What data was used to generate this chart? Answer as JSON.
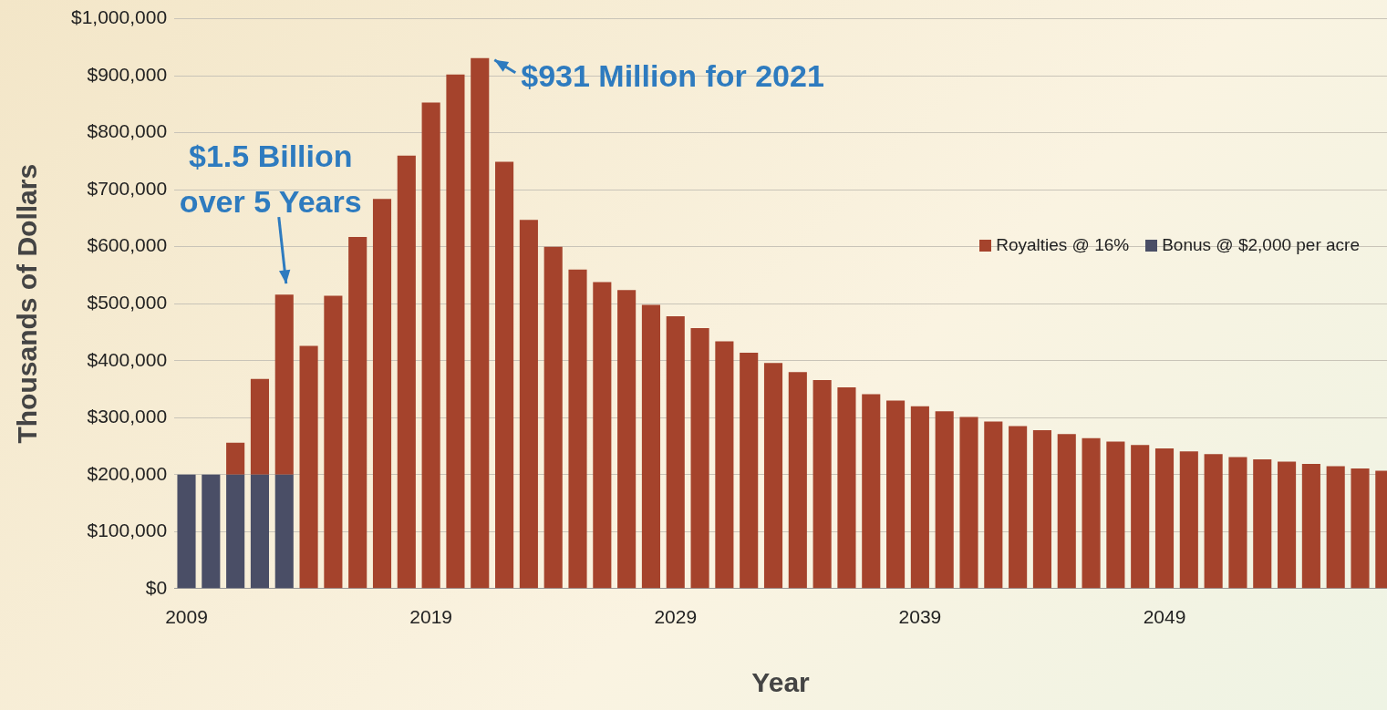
{
  "chart_data": {
    "type": "bar",
    "stacked": true,
    "xlabel": "Year",
    "ylabel": "Thousands of Dollars",
    "x": [
      2009,
      2010,
      2011,
      2012,
      2013,
      2014,
      2015,
      2016,
      2017,
      2018,
      2019,
      2020,
      2021,
      2022,
      2023,
      2024,
      2025,
      2026,
      2027,
      2028,
      2029,
      2030,
      2031,
      2032,
      2033,
      2034,
      2035,
      2036,
      2037,
      2038,
      2039,
      2040,
      2041,
      2042,
      2043,
      2044,
      2045,
      2046,
      2047,
      2048,
      2049,
      2050,
      2051,
      2052,
      2053,
      2054,
      2055,
      2056,
      2057,
      2058
    ],
    "series": [
      {
        "name": "Bonus @ $2,000 per acre",
        "color": "#4a4e66",
        "values": [
          200000,
          200000,
          200000,
          200000,
          200000,
          null,
          null,
          null,
          null,
          null,
          null,
          null,
          null,
          null,
          null,
          null,
          null,
          null,
          null,
          null,
          null,
          null,
          null,
          null,
          null,
          null,
          null,
          null,
          null,
          null,
          null,
          null,
          null,
          null,
          null,
          null,
          null,
          null,
          null,
          null,
          null,
          null,
          null,
          null,
          null,
          null,
          null,
          null,
          null,
          null
        ]
      },
      {
        "name": "Royalties @ 16%",
        "color": "#a5432c",
        "values": [
          null,
          null,
          56000,
          168000,
          316000,
          426000,
          514000,
          617000,
          684000,
          760000,
          853000,
          902000,
          931000,
          749000,
          647000,
          600000,
          560000,
          538000,
          524000,
          498000,
          478000,
          457000,
          434000,
          414000,
          396000,
          380000,
          366000,
          353000,
          341000,
          330000,
          320000,
          311000,
          301000,
          293000,
          285000,
          278000,
          271000,
          264000,
          258000,
          252000,
          246000,
          241000,
          236000,
          231000,
          227000,
          223000,
          219000,
          215000,
          211000,
          207000
        ]
      }
    ],
    "xlim": [
      2008.5,
      2058.1
    ],
    "xticks": [
      2009,
      2019,
      2029,
      2039,
      2049
    ],
    "ylim": [
      0,
      1000000
    ],
    "yticks": [
      {
        "value": 0,
        "label": "$0"
      },
      {
        "value": 100000,
        "label": "$100,000"
      },
      {
        "value": 200000,
        "label": "$200,000"
      },
      {
        "value": 300000,
        "label": "$300,000"
      },
      {
        "value": 400000,
        "label": "$400,000"
      },
      {
        "value": 500000,
        "label": "$500,000"
      },
      {
        "value": 600000,
        "label": "$600,000"
      },
      {
        "value": 700000,
        "label": "$700,000"
      },
      {
        "value": 800000,
        "label": "$800,000"
      },
      {
        "value": 900000,
        "label": "$900,000"
      },
      {
        "value": 1000000,
        "label": "$1,000,000"
      }
    ],
    "grid": "y",
    "legend": "right",
    "annotations": [
      {
        "text": "$931 Million for 2021",
        "x": 2021,
        "y": 931000
      },
      {
        "text": "$1.5 Billion\nover 5 Years",
        "x": 2013,
        "y": 516000
      }
    ]
  }
}
